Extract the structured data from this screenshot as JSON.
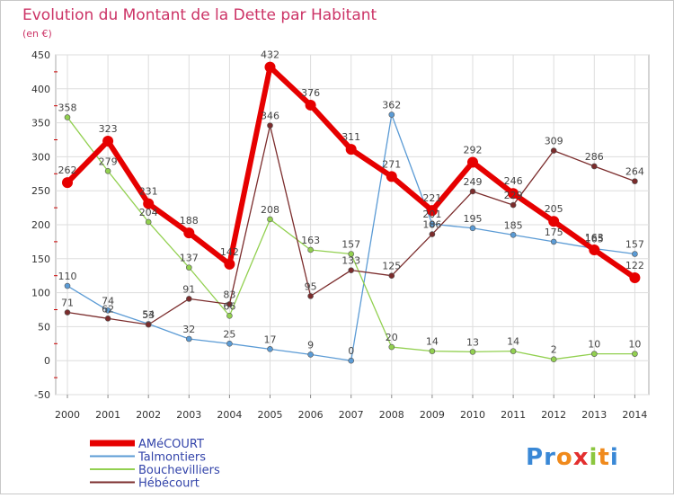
{
  "chart_data": {
    "type": "line",
    "title": "Evolution du Montant de la Dette par Habitant",
    "subtitle": "(en €)",
    "xlabel": "",
    "ylabel": "",
    "ylim": [
      -50,
      450
    ],
    "yticks": [
      -50,
      0,
      50,
      100,
      150,
      200,
      250,
      300,
      350,
      400,
      450
    ],
    "grid": true,
    "legend_position": "bottom-left",
    "x": [
      "2000",
      "2001",
      "2002",
      "2003",
      "2004",
      "2005",
      "2006",
      "2007",
      "2008",
      "2009",
      "2010",
      "2011",
      "2012",
      "2013",
      "2014"
    ],
    "series": [
      {
        "name": "AMéCOURT",
        "color": "#e60000",
        "values": [
          262,
          323,
          231,
          188,
          142,
          432,
          376,
          311,
          271,
          221,
          292,
          246,
          205,
          163,
          122
        ]
      },
      {
        "name": "Talmontiers",
        "color": "#5b9bd5",
        "values": [
          110,
          74,
          54,
          32,
          25,
          17,
          9,
          0,
          362,
          201,
          195,
          185,
          175,
          165,
          157
        ]
      },
      {
        "name": "Bouchevilliers",
        "color": "#92d050",
        "values": [
          358,
          279,
          204,
          137,
          66,
          208,
          163,
          157,
          20,
          14,
          13,
          14,
          2,
          10,
          10
        ]
      },
      {
        "name": "Hébécourt",
        "color": "#7b2c2c",
        "values": [
          71,
          62,
          53,
          91,
          83,
          346,
          95,
          133,
          125,
          186,
          249,
          229,
          309,
          286,
          264
        ]
      }
    ]
  },
  "branding": {
    "logo_text": "Proxiti"
  }
}
